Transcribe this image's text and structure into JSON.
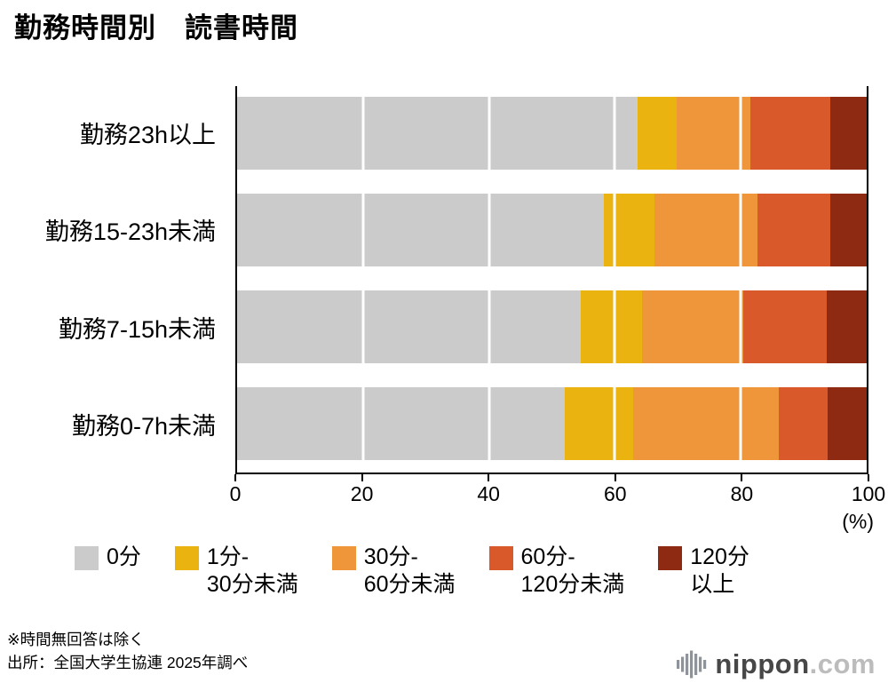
{
  "chart_data": {
    "type": "bar",
    "subtype": "horizontal-stacked",
    "title": "勤務時間別　読書時間",
    "categories": [
      "勤務23h以上",
      "勤務15-23h未満",
      "勤務7-15h未満",
      "勤務0-7h未満"
    ],
    "series": [
      {
        "key": "0min",
        "name": "0分",
        "legend_label": "0分",
        "color": "#cbcbcc",
        "values": [
          63.5,
          58.2,
          54.6,
          52.0
        ]
      },
      {
        "key": "1to30",
        "name": "1分-30分未満",
        "legend_label": "1分-\n30分未満",
        "color": "#eab310",
        "values": [
          6.2,
          8.0,
          9.6,
          10.9
        ]
      },
      {
        "key": "30to60",
        "name": "30分-60分未満",
        "legend_label": "30分-\n60分未満",
        "color": "#f0963a",
        "values": [
          11.6,
          16.3,
          16.0,
          23.0
        ]
      },
      {
        "key": "60to120",
        "name": "60分-120分未満",
        "legend_label": "60分-\n120分未満",
        "color": "#d9592a",
        "values": [
          12.7,
          11.5,
          13.2,
          7.6
        ]
      },
      {
        "key": "120plus",
        "name": "120分以上",
        "legend_label": "120分\n以上",
        "color": "#8e2a12",
        "values": [
          6.0,
          6.0,
          6.6,
          6.5
        ]
      }
    ],
    "x_ticks": [
      0,
      20,
      40,
      60,
      80,
      100
    ],
    "gridlines_at": [
      20,
      40,
      60,
      80
    ],
    "xlim": [
      0,
      100
    ],
    "x_unit": "(%)",
    "legend_position": "bottom",
    "grid": true
  },
  "footnotes": {
    "note": "※時間無回答は除く",
    "source": "出所：全国大学生協連 2025年調べ"
  },
  "logo": {
    "brand": "nippon",
    "tld": ".com"
  }
}
